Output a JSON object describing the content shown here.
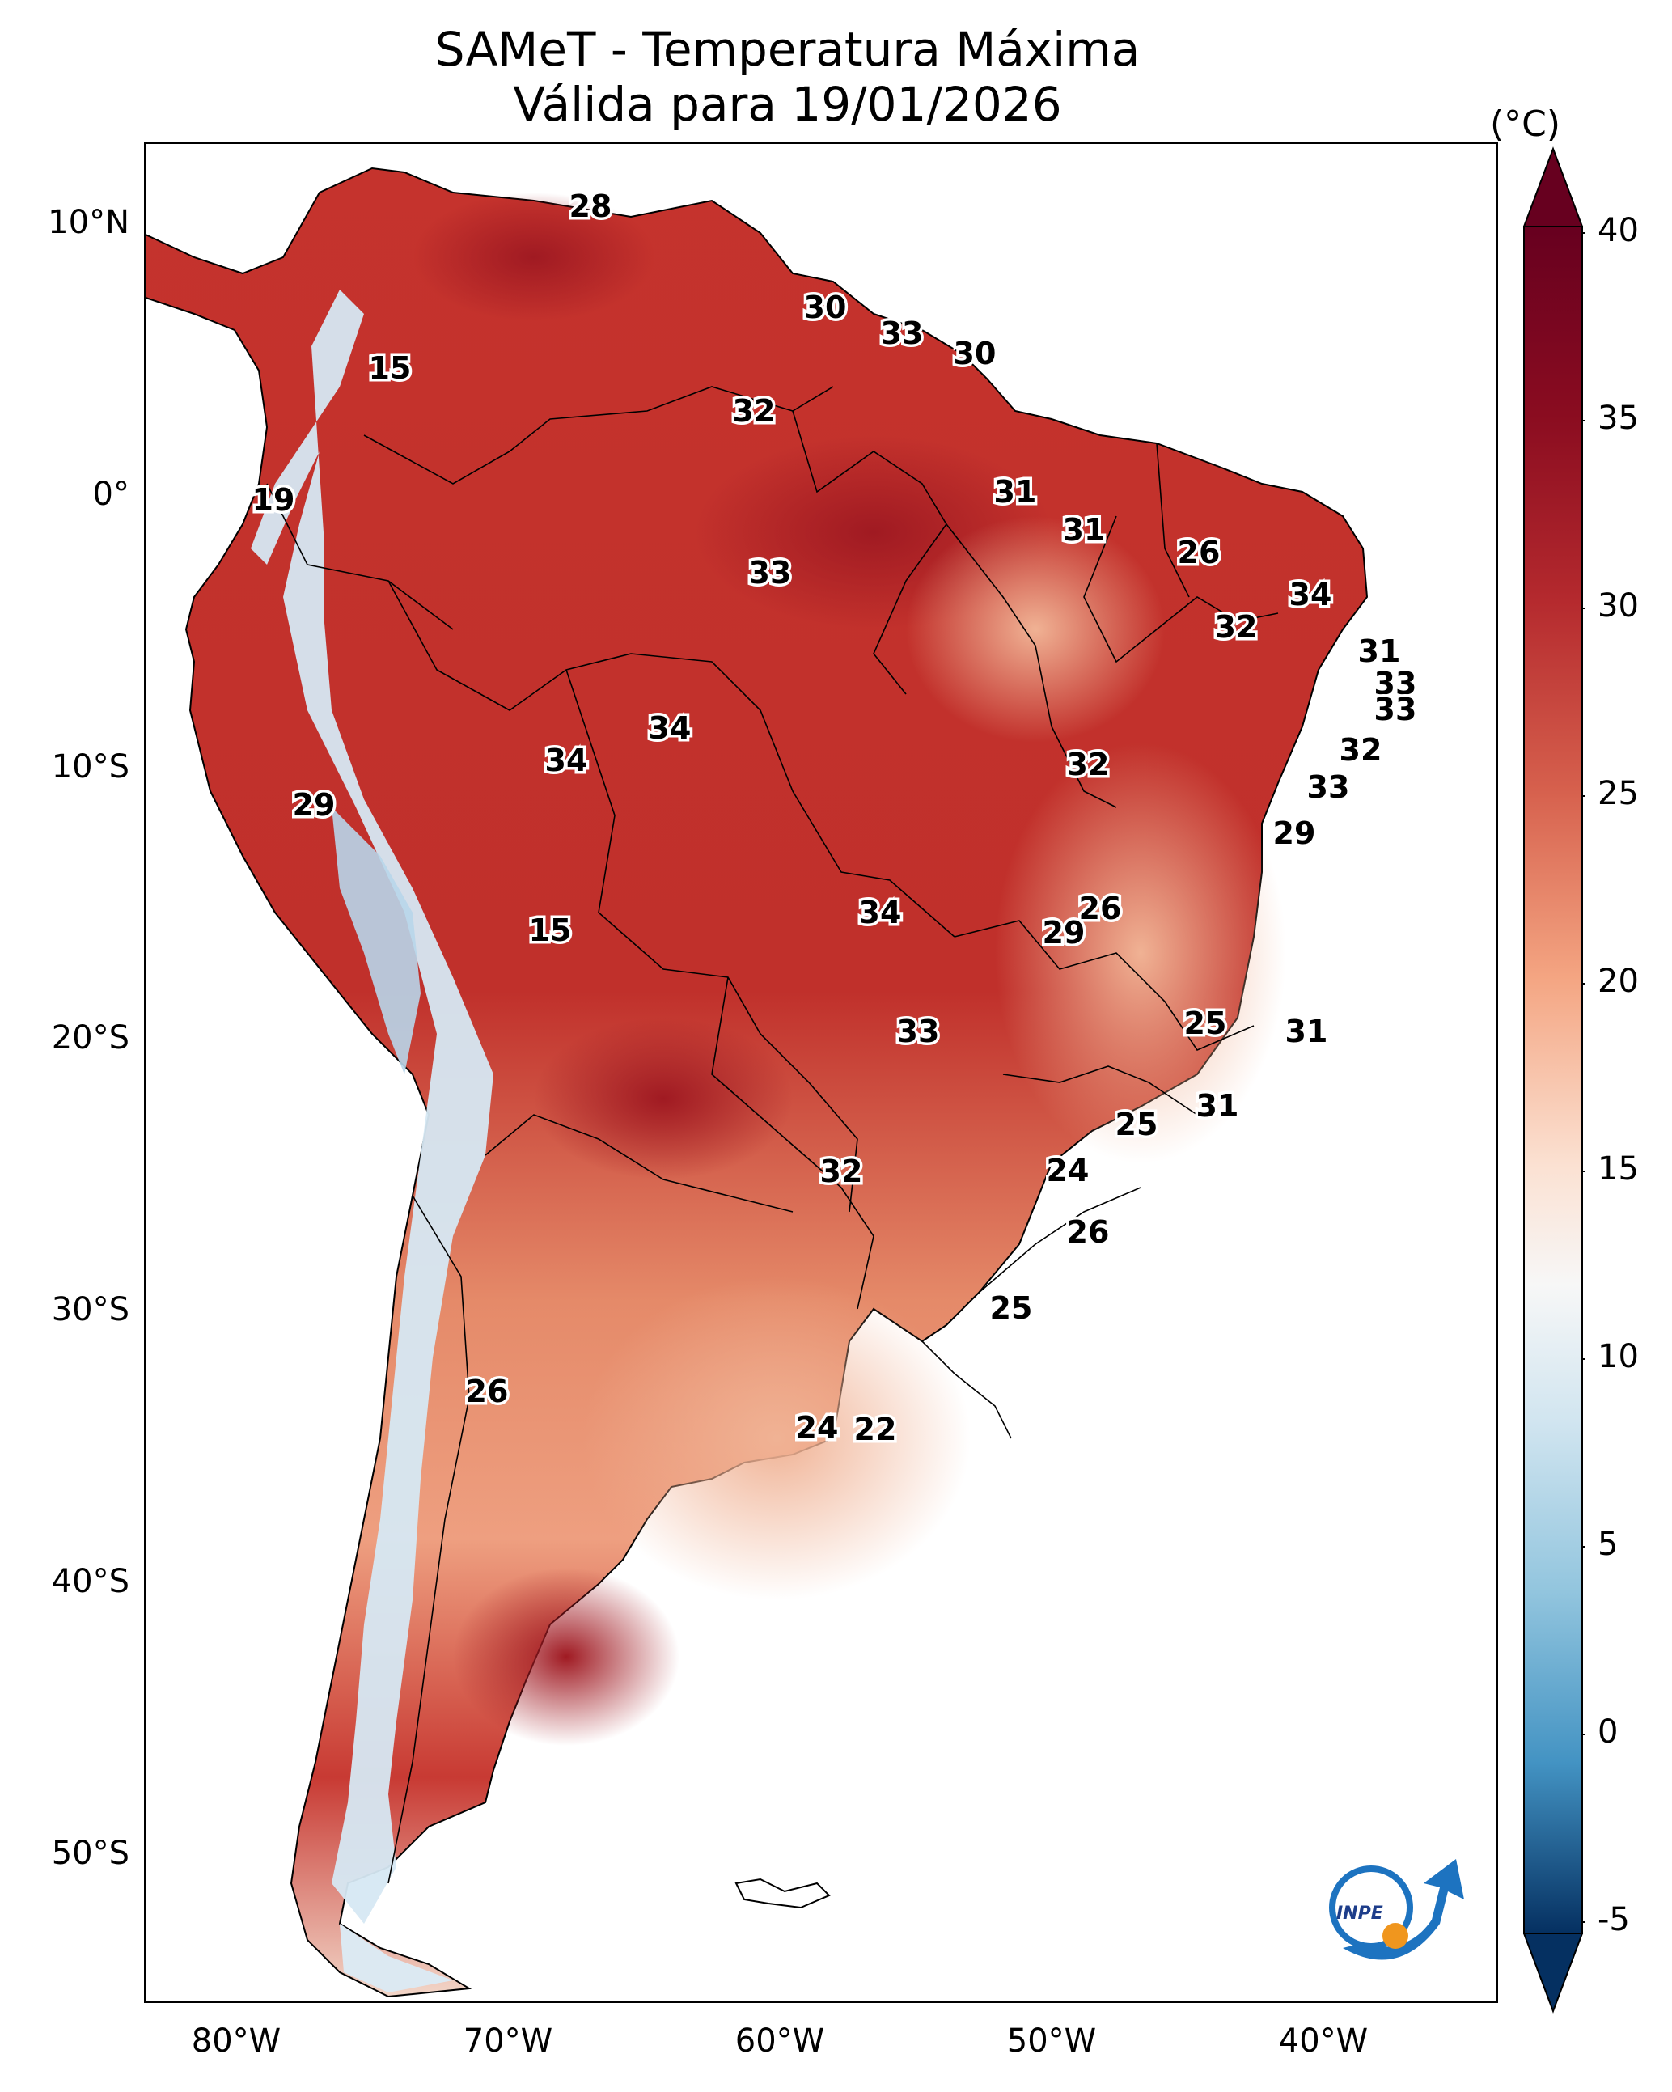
{
  "title": "SAMeT - Temperatura Máxima",
  "subtitle": "Válida para 19/01/2026",
  "colorbar": {
    "unit": "(°C)",
    "ticks": [
      "40",
      "35",
      "30",
      "25",
      "20",
      "15",
      "10",
      "5",
      "0",
      "-5"
    ],
    "range": [
      -5,
      40
    ],
    "colors": [
      "#0a3a70",
      "#2f6fb2",
      "#7bb2d8",
      "#d1e5f0",
      "#f7f7f7",
      "#f7cdb1",
      "#e88866",
      "#c63b35",
      "#8a0c20",
      "#5f0016"
    ]
  },
  "axes": {
    "lat_labels": [
      "10°N",
      "0°",
      "10°S",
      "20°S",
      "30°S",
      "40°S",
      "50°S"
    ],
    "lon_labels": [
      "80°W",
      "70°W",
      "60°W",
      "50°W",
      "40°W"
    ]
  },
  "value_labels": [
    "28",
    "30",
    "33",
    "30",
    "15",
    "32",
    "19",
    "31",
    "31",
    "33",
    "26",
    "34",
    "32",
    "31",
    "33",
    "33",
    "34",
    "34",
    "32",
    "32",
    "29",
    "33",
    "29",
    "15",
    "34",
    "26",
    "29",
    "33",
    "25",
    "31",
    "31",
    "25",
    "32",
    "24",
    "26",
    "25",
    "26",
    "24",
    "22"
  ],
  "logo": {
    "text": "INPE"
  },
  "colors": {
    "hot": "#c0302b",
    "warm": "#e06a50",
    "mild": "#f2b596",
    "cool": "#d6e8f3",
    "cold": "#5c9bca"
  }
}
